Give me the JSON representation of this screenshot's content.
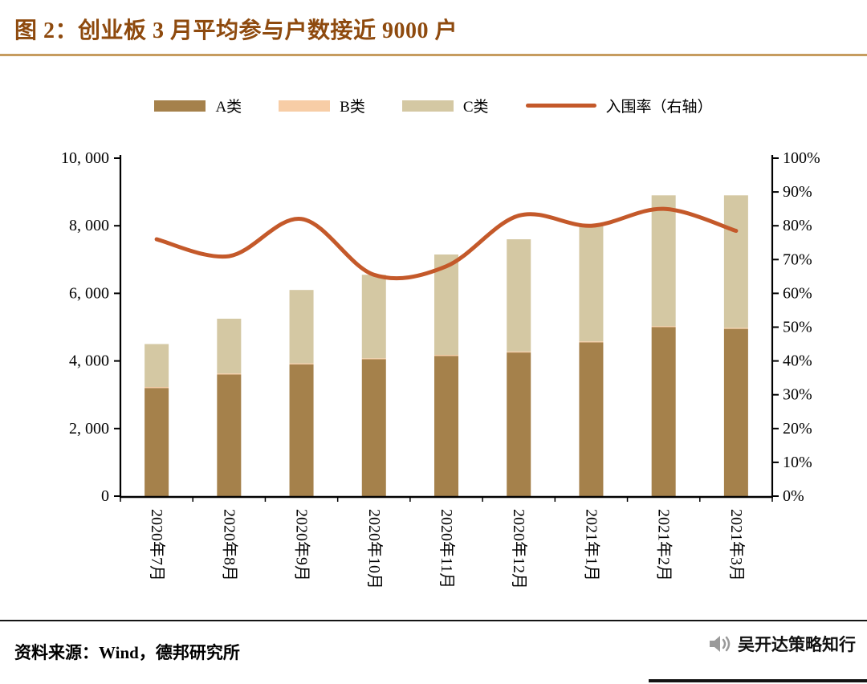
{
  "header": {
    "title": "图 2：创业板 3 月平均参与户数接近 9000 户"
  },
  "legend": [
    {
      "label": "A类",
      "type": "box",
      "color": "#A5814B",
      "icon": "legend-swatch-a"
    },
    {
      "label": "B类",
      "type": "box",
      "color": "#F7CDA6",
      "icon": "legend-swatch-b"
    },
    {
      "label": "C类",
      "type": "box",
      "color": "#D4C8A3",
      "icon": "legend-swatch-c"
    },
    {
      "label": "入围率（右轴）",
      "type": "line",
      "color": "#C4592A",
      "icon": "legend-swatch-line"
    }
  ],
  "chart_data": {
    "type": "bar",
    "subtype": "stacked-bars-with-line",
    "categories": [
      "2020年7月",
      "2020年8月",
      "2020年9月",
      "2020年10月",
      "2020年11月",
      "2020年12月",
      "2021年1月",
      "2021年2月",
      "2021年3月"
    ],
    "series": [
      {
        "name": "A类",
        "type": "bar",
        "axis": "left",
        "color": "#A5814B",
        "values": [
          3200,
          3600,
          3900,
          4050,
          4150,
          4250,
          4550,
          5000,
          4950
        ]
      },
      {
        "name": "B类",
        "type": "bar",
        "axis": "left",
        "color": "#F7CDA6",
        "values": [
          30,
          30,
          30,
          30,
          30,
          30,
          30,
          30,
          30
        ]
      },
      {
        "name": "C类",
        "type": "bar",
        "axis": "left",
        "color": "#D4C8A3",
        "values": [
          1270,
          1620,
          2170,
          2470,
          2970,
          3320,
          3470,
          3870,
          3920
        ]
      },
      {
        "name": "入围率（右轴）",
        "type": "line",
        "axis": "right",
        "color": "#C4592A",
        "values": [
          76,
          71,
          82,
          65.5,
          68,
          83,
          80,
          85,
          78.5
        ]
      }
    ],
    "left_axis": {
      "min": 0,
      "max": 10000,
      "step": 2000,
      "tick_labels": [
        "10, 000",
        "8, 000",
        "6, 000",
        "4, 000",
        "2, 000",
        "0"
      ]
    },
    "right_axis": {
      "min": 0,
      "max": 100,
      "step": 10,
      "tick_labels": [
        "100%",
        "90%",
        "80%",
        "70%",
        "60%",
        "50%",
        "40%",
        "30%",
        "20%",
        "10%",
        "0%"
      ]
    },
    "legend_position": "top",
    "grid": false
  },
  "footer": {
    "source": "资料来源：Wind，德邦研究所",
    "brand": "吴开达策略知行"
  }
}
